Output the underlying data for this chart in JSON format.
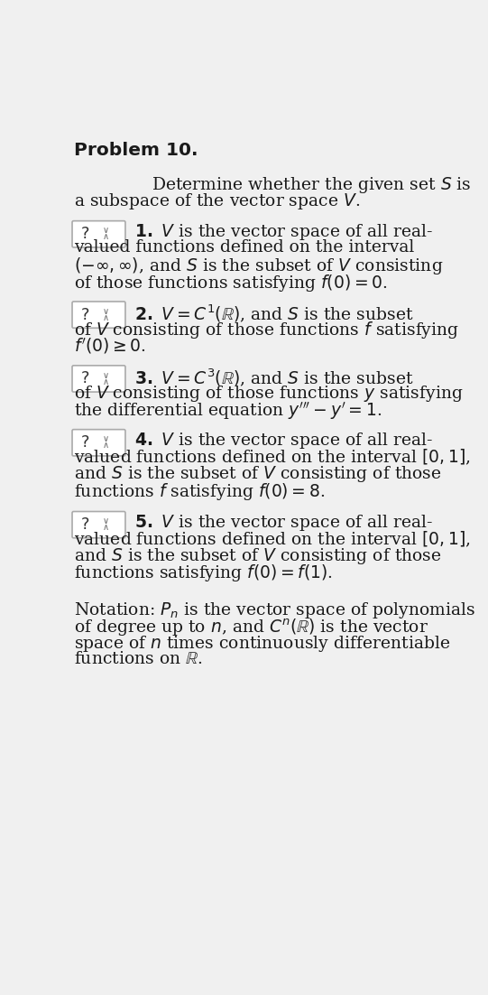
{
  "title": "Problem 10.",
  "bg_color": "#f0f0f0",
  "text_color": "#1a1a1a",
  "box_bg": "#ffffff",
  "box_border": "#aaaaaa"
}
